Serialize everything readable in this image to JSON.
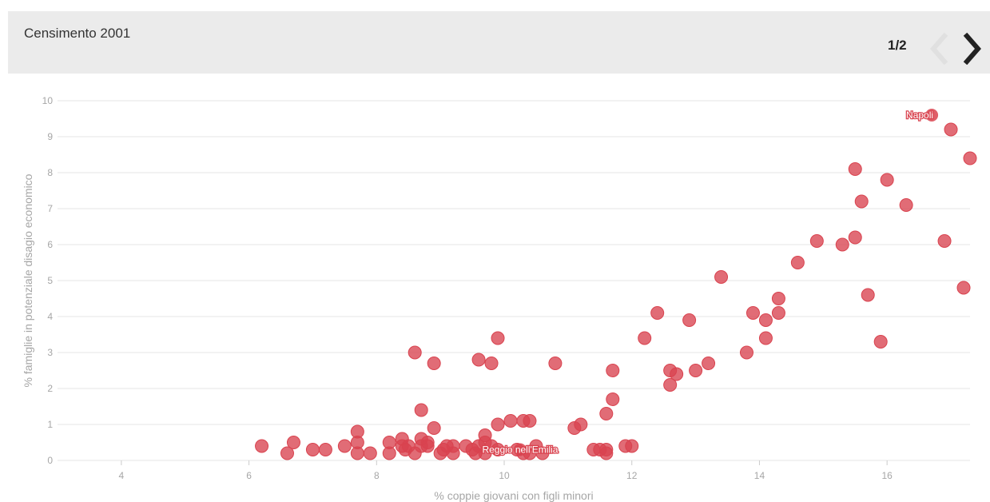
{
  "header": {
    "title": "Censimento 2001",
    "pager": "1/2",
    "prev_icon": "chevron-left-icon",
    "next_icon": "chevron-right-icon"
  },
  "colors": {
    "point": "#d9434f",
    "label": "#ffffff",
    "grid": "#e6e6e6",
    "axis_text": "#a6a6a6",
    "header_bg": "#ebebeb",
    "nav_disabled": "#e0e0e0",
    "nav_active": "#222222"
  },
  "chart_data": {
    "type": "scatter",
    "xlabel": "% coppie giovani con figli minori",
    "ylabel": "% famiglie in potenziale disagio economico",
    "xlim": [
      3,
      17.3
    ],
    "ylim": [
      0,
      10
    ],
    "xticks": [
      4,
      6,
      8,
      10,
      12,
      14,
      16
    ],
    "yticks": [
      0,
      1,
      2,
      3,
      4,
      5,
      6,
      7,
      8,
      9,
      10
    ],
    "grid": true,
    "points": [
      [
        6.2,
        0.4
      ],
      [
        6.6,
        0.2
      ],
      [
        6.7,
        0.5
      ],
      [
        7.0,
        0.3
      ],
      [
        7.2,
        0.3
      ],
      [
        7.5,
        0.4
      ],
      [
        7.7,
        0.8
      ],
      [
        7.7,
        0.5
      ],
      [
        7.7,
        0.2
      ],
      [
        7.9,
        0.2
      ],
      [
        8.2,
        0.5
      ],
      [
        8.2,
        0.2
      ],
      [
        8.4,
        0.6
      ],
      [
        8.4,
        0.4
      ],
      [
        8.45,
        0.3
      ],
      [
        8.5,
        0.4
      ],
      [
        8.6,
        0.2
      ],
      [
        8.6,
        3.0
      ],
      [
        8.7,
        1.4
      ],
      [
        8.7,
        0.6
      ],
      [
        8.7,
        0.4
      ],
      [
        8.8,
        0.5
      ],
      [
        8.8,
        0.4
      ],
      [
        8.9,
        2.7
      ],
      [
        8.9,
        0.9
      ],
      [
        9.0,
        0.2
      ],
      [
        9.05,
        0.3
      ],
      [
        9.1,
        0.4
      ],
      [
        9.2,
        0.2
      ],
      [
        9.2,
        0.4
      ],
      [
        9.4,
        0.4
      ],
      [
        9.5,
        0.3
      ],
      [
        9.55,
        0.2
      ],
      [
        9.6,
        0.4
      ],
      [
        9.6,
        2.8
      ],
      [
        9.7,
        0.7
      ],
      [
        9.7,
        0.5
      ],
      [
        9.7,
        0.2
      ],
      [
        9.8,
        2.7
      ],
      [
        9.8,
        0.4
      ],
      [
        9.9,
        3.4
      ],
      [
        9.9,
        1.0
      ],
      [
        9.9,
        0.3
      ],
      [
        10.1,
        1.1
      ],
      [
        10.2,
        0.3
      ],
      [
        10.3,
        1.1
      ],
      [
        10.3,
        0.2
      ],
      [
        10.4,
        1.1
      ],
      [
        10.4,
        0.2
      ],
      [
        10.5,
        0.4
      ],
      [
        10.6,
        0.2
      ],
      [
        10.8,
        2.7
      ],
      [
        11.1,
        0.9
      ],
      [
        11.2,
        1.0
      ],
      [
        11.4,
        0.3
      ],
      [
        11.5,
        0.3
      ],
      [
        11.6,
        1.3
      ],
      [
        11.6,
        0.3
      ],
      [
        11.6,
        0.2
      ],
      [
        11.7,
        2.5
      ],
      [
        11.7,
        1.7
      ],
      [
        11.9,
        0.4
      ],
      [
        12.0,
        0.4
      ],
      [
        12.2,
        3.4
      ],
      [
        12.4,
        4.1
      ],
      [
        12.6,
        2.5
      ],
      [
        12.6,
        2.1
      ],
      [
        12.7,
        2.4
      ],
      [
        12.9,
        3.9
      ],
      [
        13.0,
        2.5
      ],
      [
        13.2,
        2.7
      ],
      [
        13.4,
        5.1
      ],
      [
        13.8,
        3.0
      ],
      [
        13.9,
        4.1
      ],
      [
        14.1,
        3.9
      ],
      [
        14.1,
        3.4
      ],
      [
        14.3,
        4.5
      ],
      [
        14.3,
        4.1
      ],
      [
        14.6,
        5.5
      ],
      [
        14.9,
        6.1
      ],
      [
        15.3,
        6.0
      ],
      [
        15.5,
        8.1
      ],
      [
        15.5,
        6.2
      ],
      [
        15.6,
        7.2
      ],
      [
        15.7,
        4.6
      ],
      [
        15.9,
        3.3
      ],
      [
        16.0,
        7.8
      ],
      [
        16.3,
        7.1
      ],
      [
        16.9,
        6.1
      ],
      [
        17.0,
        9.2
      ],
      [
        17.2,
        4.8
      ],
      [
        17.3,
        8.4
      ]
    ],
    "annotations": [
      {
        "text": "Napoli",
        "x": 16.7,
        "y": 9.6
      },
      {
        "text": "Reggio nell'Emilia",
        "x": 10.25,
        "y": 0.3
      }
    ]
  }
}
